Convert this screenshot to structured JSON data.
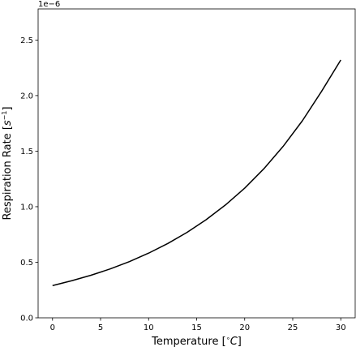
{
  "chart_data": {
    "type": "line",
    "title": "",
    "xlabel": "Temperature [$^{\\circ}C$]",
    "xlabel_parts": {
      "prefix": "Temperature [",
      "sup": "∘",
      "main": "C",
      "suffix": "]"
    },
    "ylabel": "Respiration Rate [$s^{-1}$]",
    "ylabel_parts": {
      "prefix": "Respiration Rate [",
      "main": "s",
      "sup": "−1",
      "suffix": "]"
    },
    "y_offset_label": "1e−6",
    "xlim": [
      -1.5,
      31.5
    ],
    "ylim": [
      0.0,
      2.78
    ],
    "x_ticks": [
      0,
      5,
      10,
      15,
      20,
      25,
      30
    ],
    "x_tick_labels": [
      "0",
      "5",
      "10",
      "15",
      "20",
      "25",
      "30"
    ],
    "y_ticks": [
      0.0,
      0.5,
      1.0,
      1.5,
      2.0,
      2.5
    ],
    "y_tick_labels": [
      "0.0",
      "0.5",
      "1.0",
      "1.5",
      "2.0",
      "2.5"
    ],
    "grid": false,
    "series": [
      {
        "color": "#000000",
        "x": [
          0,
          2,
          4,
          6,
          8,
          10,
          12,
          14,
          16,
          18,
          20,
          22,
          24,
          26,
          28,
          30
        ],
        "y": [
          0.29,
          0.334,
          0.383,
          0.44,
          0.506,
          0.582,
          0.669,
          0.769,
          0.884,
          1.016,
          1.167,
          1.342,
          1.543,
          1.773,
          2.038,
          2.32
        ]
      }
    ]
  }
}
